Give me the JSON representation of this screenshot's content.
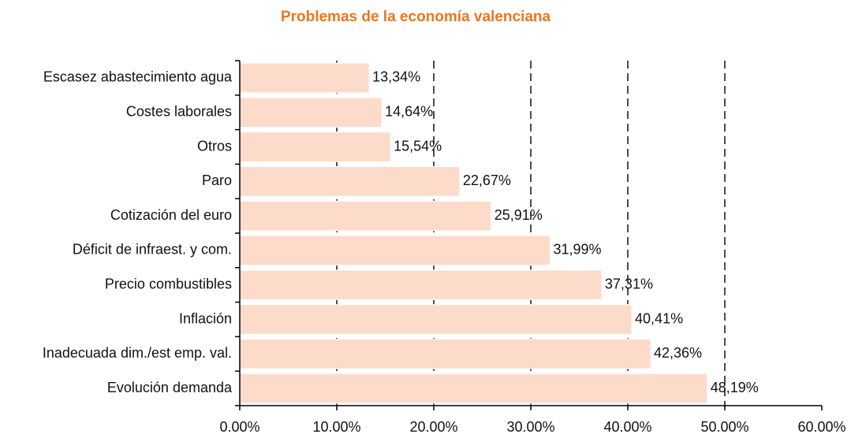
{
  "chart_data": {
    "type": "barh",
    "title": "Problemas de la economía valenciana",
    "categories": [
      "Escasez abastecimiento agua",
      "Costes laborales",
      "Otros",
      "Paro",
      "Cotización del euro",
      "Déficit de infraest. y com.",
      "Precio combustibles",
      "Inflación",
      "Inadecuada dim./est emp. val.",
      "Evolución demanda"
    ],
    "values": [
      13.34,
      14.64,
      15.54,
      22.67,
      25.91,
      31.99,
      37.31,
      40.41,
      42.36,
      48.19
    ],
    "value_labels": [
      "13,34%",
      "14,64%",
      "15,54%",
      "22,67%",
      "25,91%",
      "31,99%",
      "37,31%",
      "40,41%",
      "42,36%",
      "48,19%"
    ],
    "color": "#fddbcb",
    "xlim": [
      0,
      60
    ],
    "xticks": [
      {
        "value": 0,
        "label": "0.00%"
      },
      {
        "value": 10,
        "label": "10.00%"
      },
      {
        "value": 20,
        "label": "20.00%"
      },
      {
        "value": 30,
        "label": "30.00%"
      },
      {
        "value": 40,
        "label": "40.00%"
      },
      {
        "value": 50,
        "label": "50.00%"
      },
      {
        "value": 60,
        "label": "60.00%"
      }
    ],
    "grid": true
  }
}
